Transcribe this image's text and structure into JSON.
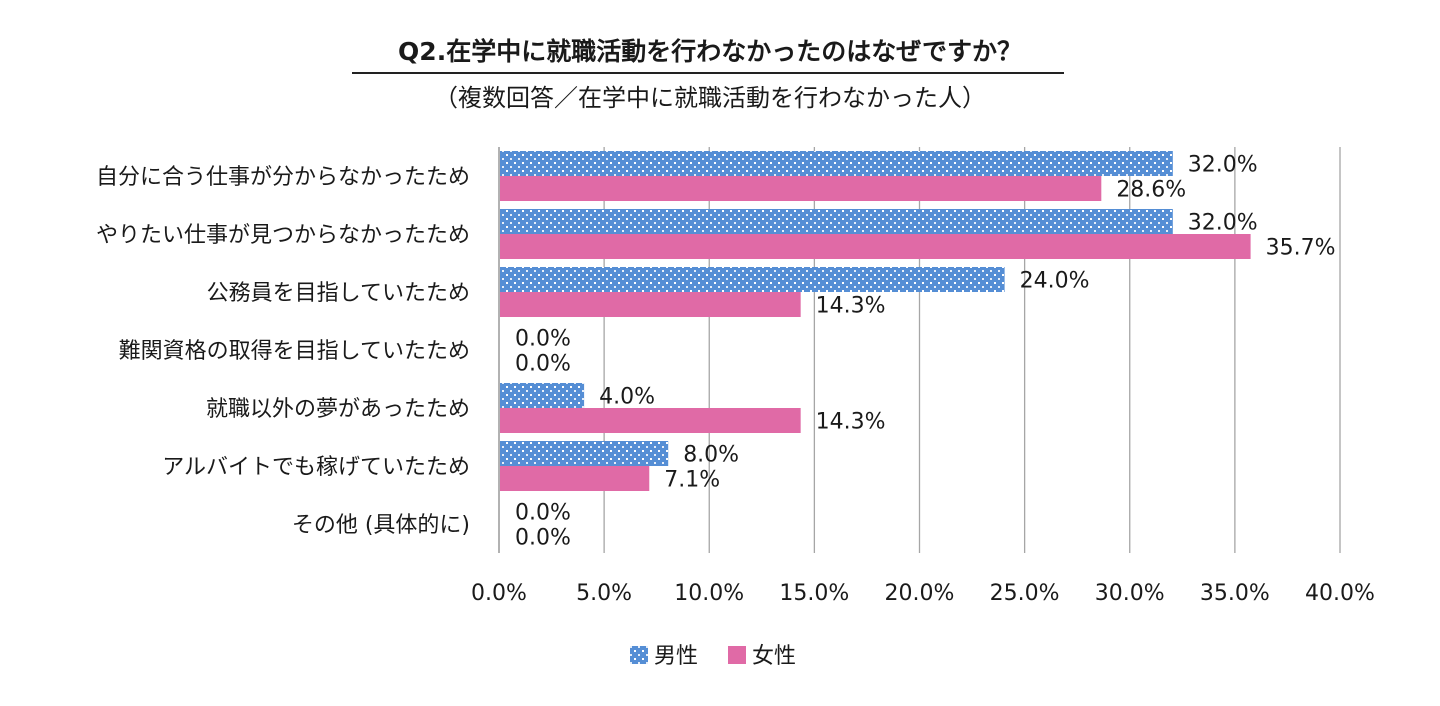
{
  "chart_data": {
    "type": "bar",
    "orientation": "horizontal",
    "title": "Q2.在学中に就職活動を行わなかったのはなぜですか？",
    "subtitle": "（複数回答／在学中に就職活動を行わなかった人）",
    "categories": [
      "自分に合う仕事が分からなかったため",
      "やりたい仕事が見つからなかったため",
      "公務員を目指していたため",
      "難関資格の取得を目指していたため",
      "就職以外の夢があったため",
      "アルバイトでも稼げていたため",
      "その他 (具体的に)"
    ],
    "series": [
      {
        "name": "男性",
        "color": "#558ed5",
        "pattern": "dots",
        "values": [
          32.0,
          32.0,
          24.0,
          0.0,
          4.0,
          8.0,
          0.0
        ],
        "labels": [
          "32.0%",
          "32.0%",
          "24.0%",
          "0.0%",
          "4.0%",
          "8.0%",
          "0.0%"
        ]
      },
      {
        "name": "女性",
        "color": "#e06aa6",
        "pattern": "solid",
        "values": [
          28.6,
          35.7,
          14.3,
          0.0,
          14.3,
          7.1,
          0.0
        ],
        "labels": [
          "28.6%",
          "35.7%",
          "14.3%",
          "0.0%",
          "14.3%",
          "7.1%",
          "0.0%"
        ]
      }
    ],
    "xlim": [
      0,
      40
    ],
    "xticks": [
      0,
      5,
      10,
      15,
      20,
      25,
      30,
      35,
      40
    ],
    "xtick_labels": [
      "0.0%",
      "5.0%",
      "10.0%",
      "15.0%",
      "20.0%",
      "25.0%",
      "30.0%",
      "35.0%",
      "40.0%"
    ],
    "grid": true,
    "legend_position": "bottom",
    "xlabel": "",
    "ylabel": ""
  }
}
